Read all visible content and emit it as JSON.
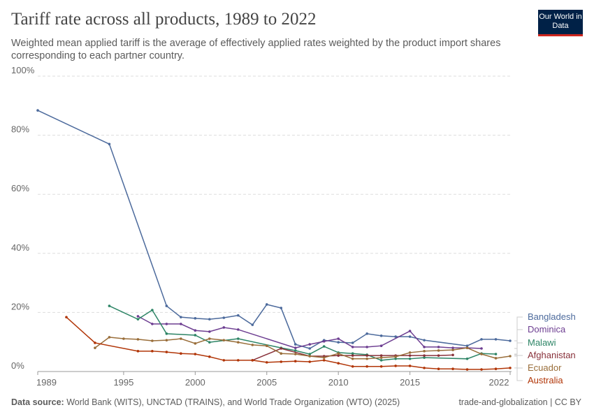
{
  "header": {
    "title": "Tariff rate across all products, 1989 to 2022",
    "subtitle": "Weighted mean applied tariff is the average of effectively applied rates weighted by the product import shares corresponding to each partner country.",
    "logo": "Our World in Data"
  },
  "footer": {
    "source_label": "Data source:",
    "source": "World Bank (WITS), UNCTAD (TRAINS), and World Trade Organization (WTO) (2025)",
    "license": "trade-and-globalization | CC BY"
  },
  "chart_data": {
    "type": "line",
    "title": "Tariff rate across all products, 1989 to 2022",
    "xlim": [
      1989,
      2022
    ],
    "ylim": [
      0,
      100
    ],
    "x_ticks": [
      "1989",
      "1995",
      "2000",
      "2005",
      "2010",
      "2015",
      "2022"
    ],
    "y_ticks": [
      "0%",
      "20%",
      "40%",
      "60%",
      "80%",
      "100%"
    ],
    "grid": "horizontal dashed",
    "legend": "right (line end labels)",
    "series": [
      {
        "name": "Bangladesh",
        "color": "#4c6a9c",
        "points": [
          [
            1989,
            88.4
          ],
          [
            1994,
            77
          ],
          [
            1998,
            22.2
          ],
          [
            1999,
            18.4
          ],
          [
            2000,
            18
          ],
          [
            2001,
            17.7
          ],
          [
            2002,
            18.2
          ],
          [
            2003,
            19
          ],
          [
            2004,
            15.8
          ],
          [
            2005,
            22.7
          ],
          [
            2006,
            21.5
          ],
          [
            2007,
            9.2
          ],
          [
            2008,
            7.8
          ],
          [
            2009,
            10.6
          ],
          [
            2010,
            9.9
          ],
          [
            2011,
            9.7
          ],
          [
            2012,
            12.8
          ],
          [
            2013,
            12.1
          ],
          [
            2014,
            11.8
          ],
          [
            2015,
            11.8
          ],
          [
            2016,
            10.6
          ],
          [
            2019,
            8.7
          ],
          [
            2020,
            10.9
          ],
          [
            2021,
            10.9
          ],
          [
            2022,
            10.4
          ]
        ]
      },
      {
        "name": "Dominica",
        "color": "#6d3e91",
        "points": [
          [
            1996,
            18.7
          ],
          [
            1997,
            16.1
          ],
          [
            1998,
            16.1
          ],
          [
            1999,
            16.1
          ],
          [
            2000,
            13.9
          ],
          [
            2001,
            13.5
          ],
          [
            2002,
            14.9
          ],
          [
            2003,
            14.2
          ],
          [
            2007,
            8
          ],
          [
            2008,
            9.2
          ],
          [
            2009,
            10.2
          ],
          [
            2010,
            11.1
          ],
          [
            2011,
            8.3
          ],
          [
            2012,
            8.3
          ],
          [
            2013,
            8.7
          ],
          [
            2015,
            13.7
          ],
          [
            2016,
            8.3
          ],
          [
            2017,
            8.3
          ],
          [
            2018,
            8
          ],
          [
            2019,
            8
          ],
          [
            2020,
            7.8
          ]
        ]
      },
      {
        "name": "Malawi",
        "color": "#2c8465",
        "points": [
          [
            1994,
            22.2
          ],
          [
            1996,
            17.7
          ],
          [
            1997,
            20.8
          ],
          [
            1998,
            12.8
          ],
          [
            2000,
            12.3
          ],
          [
            2001,
            9.9
          ],
          [
            2003,
            11.1
          ],
          [
            2006,
            8
          ],
          [
            2007,
            7.1
          ],
          [
            2008,
            5.9
          ],
          [
            2009,
            8.5
          ],
          [
            2010,
            6.4
          ],
          [
            2011,
            6.1
          ],
          [
            2012,
            5.7
          ],
          [
            2013,
            3.8
          ],
          [
            2014,
            4.3
          ],
          [
            2015,
            4.3
          ],
          [
            2016,
            4.7
          ],
          [
            2019,
            4.3
          ],
          [
            2020,
            6.1
          ],
          [
            2021,
            5.9
          ]
        ]
      },
      {
        "name": "Afghanistan",
        "color": "#883039",
        "points": [
          [
            2004,
            3.8
          ],
          [
            2006,
            7.8
          ],
          [
            2008,
            5.2
          ],
          [
            2009,
            5.2
          ],
          [
            2010,
            5.4
          ],
          [
            2011,
            5.4
          ],
          [
            2012,
            5.4
          ],
          [
            2013,
            5.4
          ],
          [
            2014,
            5.4
          ],
          [
            2015,
            5.4
          ],
          [
            2016,
            5.4
          ],
          [
            2017,
            5.4
          ],
          [
            2018,
            5.6
          ]
        ]
      },
      {
        "name": "Ecuador",
        "color": "#996d39",
        "points": [
          [
            1993,
            8
          ],
          [
            1994,
            11.6
          ],
          [
            1995,
            11.1
          ],
          [
            1996,
            10.9
          ],
          [
            1997,
            10.4
          ],
          [
            1998,
            10.6
          ],
          [
            1999,
            11.1
          ],
          [
            2000,
            9.5
          ],
          [
            2001,
            11.1
          ],
          [
            2002,
            10.6
          ],
          [
            2003,
            9.9
          ],
          [
            2004,
            9
          ],
          [
            2005,
            8.7
          ],
          [
            2006,
            6.1
          ],
          [
            2007,
            5.9
          ],
          [
            2008,
            5.2
          ],
          [
            2009,
            4.7
          ],
          [
            2010,
            6.1
          ],
          [
            2011,
            4.3
          ],
          [
            2012,
            4.3
          ],
          [
            2013,
            4.7
          ],
          [
            2014,
            5
          ],
          [
            2015,
            6.4
          ],
          [
            2016,
            6.9
          ],
          [
            2017,
            7.1
          ],
          [
            2018,
            7.3
          ],
          [
            2019,
            8
          ],
          [
            2020,
            5.9
          ],
          [
            2021,
            4.5
          ],
          [
            2022,
            5.2
          ]
        ]
      },
      {
        "name": "Australia",
        "color": "#b13507",
        "points": [
          [
            1991,
            18.4
          ],
          [
            1993,
            9.7
          ],
          [
            1996,
            6.9
          ],
          [
            1997,
            6.9
          ],
          [
            1998,
            6.6
          ],
          [
            1999,
            6.1
          ],
          [
            2000,
            5.9
          ],
          [
            2001,
            5
          ],
          [
            2002,
            3.8
          ],
          [
            2003,
            3.8
          ],
          [
            2004,
            3.8
          ],
          [
            2005,
            3.1
          ],
          [
            2006,
            3.3
          ],
          [
            2007,
            3.5
          ],
          [
            2008,
            3.3
          ],
          [
            2009,
            3.8
          ],
          [
            2010,
            2.8
          ],
          [
            2011,
            1.7
          ],
          [
            2012,
            1.7
          ],
          [
            2013,
            1.7
          ],
          [
            2014,
            1.9
          ],
          [
            2015,
            1.9
          ],
          [
            2016,
            1.2
          ],
          [
            2017,
            0.9
          ],
          [
            2018,
            0.9
          ],
          [
            2019,
            0.7
          ],
          [
            2020,
            0.7
          ],
          [
            2021,
            0.9
          ],
          [
            2022,
            1.2
          ]
        ]
      }
    ]
  }
}
